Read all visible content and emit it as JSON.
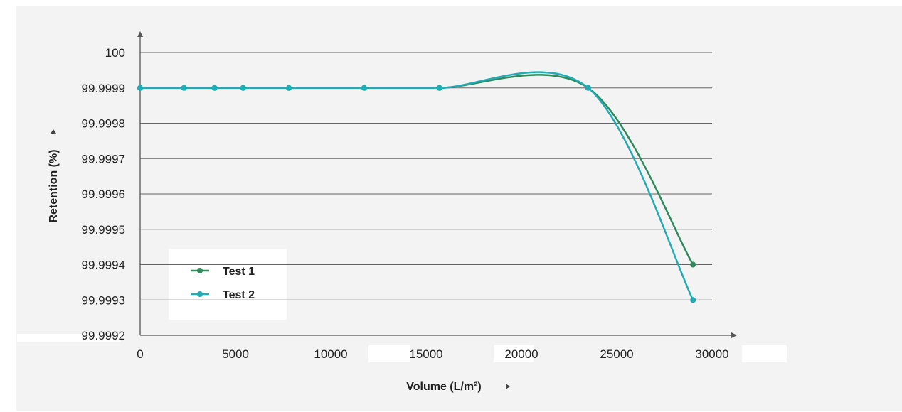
{
  "chart_data": {
    "type": "line",
    "title": "",
    "xlabel": "Volume (L/m²)",
    "ylabel": "Retention (%)",
    "xlim": [
      0,
      30000
    ],
    "ylim": [
      99.9992,
      100
    ],
    "x_ticks": [
      "0",
      "5000",
      "10000",
      "15000",
      "20000",
      "25000",
      "30000"
    ],
    "x_tick_values": [
      0,
      5000,
      10000,
      15000,
      20000,
      25000,
      30000
    ],
    "y_ticks": [
      "99.9992",
      "99.9993",
      "99.9994",
      "99.9995",
      "99.9996",
      "99.9997",
      "99.9998",
      "99.9999",
      "100"
    ],
    "y_tick_values": [
      99.9992,
      99.9993,
      99.9994,
      99.9995,
      99.9996,
      99.9997,
      99.9998,
      99.9999,
      100
    ],
    "grid": "horizontal",
    "legend_position": "bottom-left",
    "series": [
      {
        "name": "Test 1",
        "color": "#2e8a5a",
        "x": [
          0,
          2300,
          3900,
          5400,
          7800,
          11750,
          15700,
          23500,
          29000
        ],
        "y": [
          99.9999,
          99.9999,
          99.9999,
          99.9999,
          99.9999,
          99.9999,
          99.9999,
          99.9999,
          99.9994
        ]
      },
      {
        "name": "Test 2",
        "color": "#22aab5",
        "x": [
          0,
          2300,
          3900,
          5400,
          7800,
          11750,
          15700,
          23500,
          29000
        ],
        "y": [
          99.9999,
          99.9999,
          99.9999,
          99.9999,
          99.9999,
          99.9999,
          99.9999,
          99.9999,
          99.9993
        ]
      }
    ]
  }
}
